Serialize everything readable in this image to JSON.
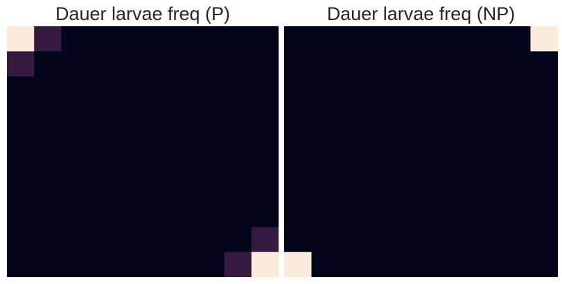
{
  "chart_data": [
    {
      "type": "heatmap",
      "title": "Dauer larvae freq (P)",
      "xlabel": "",
      "ylabel": "",
      "grid": false,
      "legend": "none",
      "value_range": [
        0,
        1
      ],
      "colormap": "rocket",
      "rows": 10,
      "cols": 10,
      "cells": [
        {
          "row": 0,
          "col": 0,
          "value": 1.0
        },
        {
          "row": 0,
          "col": 1,
          "value": 0.1
        },
        {
          "row": 1,
          "col": 0,
          "value": 0.1
        },
        {
          "row": 8,
          "col": 9,
          "value": 0.1
        },
        {
          "row": 9,
          "col": 8,
          "value": 0.1
        },
        {
          "row": 9,
          "col": 9,
          "value": 1.0
        }
      ],
      "default_value": 0
    },
    {
      "type": "heatmap",
      "title": "Dauer larvae freq (NP)",
      "xlabel": "",
      "ylabel": "",
      "grid": false,
      "legend": "none",
      "value_range": [
        0,
        1
      ],
      "colormap": "rocket",
      "rows": 10,
      "cols": 10,
      "cells": [
        {
          "row": 0,
          "col": 9,
          "value": 1.0
        },
        {
          "row": 9,
          "col": 0,
          "value": 1.0
        }
      ],
      "default_value": 0
    }
  ],
  "colors": {
    "low": "#03051a",
    "mid": "#35193e",
    "high": "#faebdd"
  }
}
